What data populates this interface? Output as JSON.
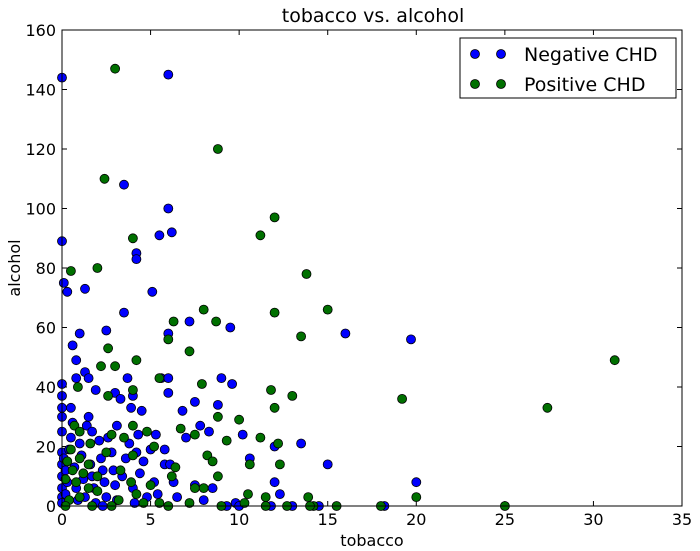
{
  "chart_data": {
    "type": "scatter",
    "title": "tobacco vs. alcohol",
    "xlabel": "tobacco",
    "ylabel": "alcohol",
    "xlim": [
      0,
      35
    ],
    "ylim": [
      0,
      160
    ],
    "xticks": [
      0,
      5,
      10,
      15,
      20,
      25,
      30,
      35
    ],
    "yticks": [
      0,
      20,
      40,
      60,
      80,
      100,
      120,
      140,
      160
    ],
    "grid": false,
    "legend_position": "top-right",
    "series": [
      {
        "name": "Negative CHD",
        "color": "#0000ff",
        "points": [
          [
            0.0,
            144.0
          ],
          [
            0.0,
            89.0
          ],
          [
            0.1,
            75.0
          ],
          [
            0.3,
            72.0
          ],
          [
            0.6,
            54.0
          ],
          [
            0.8,
            49.0
          ],
          [
            1.0,
            58.0
          ],
          [
            1.3,
            45.0
          ],
          [
            1.3,
            73.0
          ],
          [
            0.8,
            43.0
          ],
          [
            1.5,
            43.0
          ],
          [
            1.9,
            39.0
          ],
          [
            0.0,
            41.0
          ],
          [
            0.0,
            37.0
          ],
          [
            0.0,
            33.0
          ],
          [
            0.0,
            30.0
          ],
          [
            0.0,
            25.0
          ],
          [
            0.0,
            18.0
          ],
          [
            0.0,
            14.0
          ],
          [
            0.0,
            10.0
          ],
          [
            0.0,
            6.0
          ],
          [
            0.0,
            3.0
          ],
          [
            0.0,
            1.0
          ],
          [
            0.1,
            16.0
          ],
          [
            0.2,
            12.0
          ],
          [
            0.3,
            8.0
          ],
          [
            0.2,
            4.0
          ],
          [
            0.4,
            19.0
          ],
          [
            0.5,
            23.0
          ],
          [
            0.6,
            28.0
          ],
          [
            0.5,
            33.0
          ],
          [
            0.7,
            13.0
          ],
          [
            0.8,
            6.0
          ],
          [
            0.9,
            2.0
          ],
          [
            1.0,
            21.0
          ],
          [
            1.1,
            17.0
          ],
          [
            1.2,
            9.0
          ],
          [
            1.3,
            3.0
          ],
          [
            1.4,
            27.0
          ],
          [
            1.5,
            30.0
          ],
          [
            1.6,
            14.0
          ],
          [
            1.7,
            10.0
          ],
          [
            1.8,
            6.0
          ],
          [
            1.9,
            1.0
          ],
          [
            1.7,
            25.0
          ],
          [
            2.1,
            22.0
          ],
          [
            2.2,
            16.0
          ],
          [
            2.3,
            12.0
          ],
          [
            2.4,
            8.0
          ],
          [
            2.5,
            3.0
          ],
          [
            2.3,
            0.0
          ],
          [
            2.5,
            59.0
          ],
          [
            2.6,
            23.0
          ],
          [
            2.8,
            18.0
          ],
          [
            2.9,
            12.0
          ],
          [
            3.0,
            7.0
          ],
          [
            3.1,
            2.0
          ],
          [
            3.0,
            38.0
          ],
          [
            3.1,
            27.0
          ],
          [
            3.3,
            36.0
          ],
          [
            3.5,
            65.0
          ],
          [
            3.4,
            10.0
          ],
          [
            3.6,
            16.0
          ],
          [
            3.7,
            43.0
          ],
          [
            3.8,
            21.0
          ],
          [
            3.9,
            33.0
          ],
          [
            4.0,
            6.0
          ],
          [
            4.1,
            1.0
          ],
          [
            3.5,
            108.0
          ],
          [
            4.2,
            85.0
          ],
          [
            4.2,
            83.0
          ],
          [
            4.0,
            37.0
          ],
          [
            4.2,
            18.0
          ],
          [
            4.3,
            24.0
          ],
          [
            4.4,
            11.0
          ],
          [
            4.5,
            32.0
          ],
          [
            4.6,
            15.0
          ],
          [
            4.8,
            3.0
          ],
          [
            5.0,
            19.0
          ],
          [
            5.1,
            72.0
          ],
          [
            5.5,
            91.0
          ],
          [
            5.2,
            8.0
          ],
          [
            5.3,
            24.0
          ],
          [
            5.4,
            4.0
          ],
          [
            5.6,
            43.0
          ],
          [
            5.8,
            14.0
          ],
          [
            5.8,
            19.0
          ],
          [
            6.0,
            100.0
          ],
          [
            6.0,
            145.0
          ],
          [
            6.2,
            92.0
          ],
          [
            6.0,
            58.0
          ],
          [
            6.0,
            43.0
          ],
          [
            6.0,
            38.0
          ],
          [
            6.1,
            14.0
          ],
          [
            6.3,
            8.0
          ],
          [
            6.5,
            3.0
          ],
          [
            6.8,
            32.0
          ],
          [
            7.0,
            23.0
          ],
          [
            7.2,
            62.0
          ],
          [
            7.5,
            35.0
          ],
          [
            7.8,
            27.0
          ],
          [
            7.5,
            7.0
          ],
          [
            8.0,
            2.0
          ],
          [
            8.3,
            25.0
          ],
          [
            8.5,
            6.0
          ],
          [
            8.8,
            34.0
          ],
          [
            9.0,
            43.0
          ],
          [
            9.5,
            60.0
          ],
          [
            9.6,
            41.0
          ],
          [
            9.8,
            1.0
          ],
          [
            10.0,
            0.0
          ],
          [
            10.2,
            24.0
          ],
          [
            10.6,
            16.0
          ],
          [
            12.0,
            8.0
          ],
          [
            12.0,
            20.0
          ],
          [
            12.3,
            4.0
          ],
          [
            13.5,
            21.0
          ],
          [
            15.0,
            14.0
          ],
          [
            16.0,
            58.0
          ],
          [
            18.2,
            0.0
          ],
          [
            19.7,
            56.0
          ],
          [
            20.0,
            8.0
          ],
          [
            11.8,
            0.0
          ],
          [
            14.5,
            0.0
          ],
          [
            13.0,
            0.0
          ],
          [
            9.3,
            0.0
          ]
        ]
      },
      {
        "name": "Positive CHD",
        "color": "#007000",
        "points": [
          [
            3.0,
            147.0
          ],
          [
            8.8,
            120.0
          ],
          [
            2.4,
            110.0
          ],
          [
            4.0,
            90.0
          ],
          [
            12.0,
            97.0
          ],
          [
            11.2,
            91.0
          ],
          [
            0.5,
            79.0
          ],
          [
            2.0,
            80.0
          ],
          [
            13.8,
            78.0
          ],
          [
            8.0,
            66.0
          ],
          [
            15.0,
            66.0
          ],
          [
            12.0,
            65.0
          ],
          [
            6.3,
            62.0
          ],
          [
            8.7,
            62.0
          ],
          [
            13.5,
            57.0
          ],
          [
            6.0,
            56.0
          ],
          [
            2.6,
            53.0
          ],
          [
            7.2,
            52.0
          ],
          [
            4.2,
            49.0
          ],
          [
            3.0,
            47.0
          ],
          [
            2.2,
            47.0
          ],
          [
            31.2,
            49.0
          ],
          [
            5.5,
            43.0
          ],
          [
            0.9,
            40.0
          ],
          [
            7.9,
            41.0
          ],
          [
            11.8,
            39.0
          ],
          [
            4.0,
            39.0
          ],
          [
            2.6,
            37.0
          ],
          [
            13.0,
            37.0
          ],
          [
            19.2,
            36.0
          ],
          [
            12.0,
            33.0
          ],
          [
            27.4,
            33.0
          ],
          [
            8.8,
            30.0
          ],
          [
            10.0,
            29.0
          ],
          [
            0.7,
            27.0
          ],
          [
            4.0,
            27.0
          ],
          [
            6.7,
            26.0
          ],
          [
            4.8,
            25.0
          ],
          [
            1.0,
            25.0
          ],
          [
            2.8,
            24.0
          ],
          [
            3.5,
            23.0
          ],
          [
            7.5,
            24.0
          ],
          [
            11.2,
            23.0
          ],
          [
            9.3,
            22.0
          ],
          [
            12.2,
            21.0
          ],
          [
            1.6,
            21.0
          ],
          [
            5.2,
            20.0
          ],
          [
            0.5,
            19.0
          ],
          [
            2.5,
            18.0
          ],
          [
            4.0,
            17.0
          ],
          [
            8.2,
            17.0
          ],
          [
            1.0,
            16.0
          ],
          [
            8.5,
            15.0
          ],
          [
            0.3,
            15.0
          ],
          [
            10.6,
            14.0
          ],
          [
            1.5,
            14.0
          ],
          [
            12.3,
            14.0
          ],
          [
            6.4,
            13.0
          ],
          [
            0.6,
            12.0
          ],
          [
            3.3,
            12.0
          ],
          [
            1.2,
            11.0
          ],
          [
            2.0,
            10.0
          ],
          [
            6.2,
            10.0
          ],
          [
            8.8,
            10.0
          ],
          [
            0.2,
            9.0
          ],
          [
            3.9,
            8.0
          ],
          [
            0.8,
            8.0
          ],
          [
            5.0,
            7.0
          ],
          [
            7.5,
            6.0
          ],
          [
            1.5,
            6.0
          ],
          [
            2.0,
            5.0
          ],
          [
            8.0,
            6.0
          ],
          [
            4.2,
            4.0
          ],
          [
            10.5,
            4.0
          ],
          [
            13.9,
            3.0
          ],
          [
            20.0,
            3.0
          ],
          [
            11.5,
            3.0
          ],
          [
            1.0,
            3.0
          ],
          [
            3.2,
            2.0
          ],
          [
            0.4,
            2.0
          ],
          [
            5.5,
            1.0
          ],
          [
            7.2,
            1.0
          ],
          [
            9.0,
            0.0
          ],
          [
            11.5,
            0.0
          ],
          [
            15.5,
            0.0
          ],
          [
            14.2,
            0.0
          ],
          [
            18.0,
            0.0
          ],
          [
            25.0,
            0.0
          ],
          [
            6.0,
            0.0
          ],
          [
            2.8,
            0.0
          ],
          [
            0.2,
            0.0
          ],
          [
            4.6,
            1.0
          ],
          [
            1.7,
            0.0
          ],
          [
            10.3,
            1.0
          ],
          [
            12.7,
            0.0
          ],
          [
            14.0,
            0.0
          ]
        ]
      }
    ]
  }
}
